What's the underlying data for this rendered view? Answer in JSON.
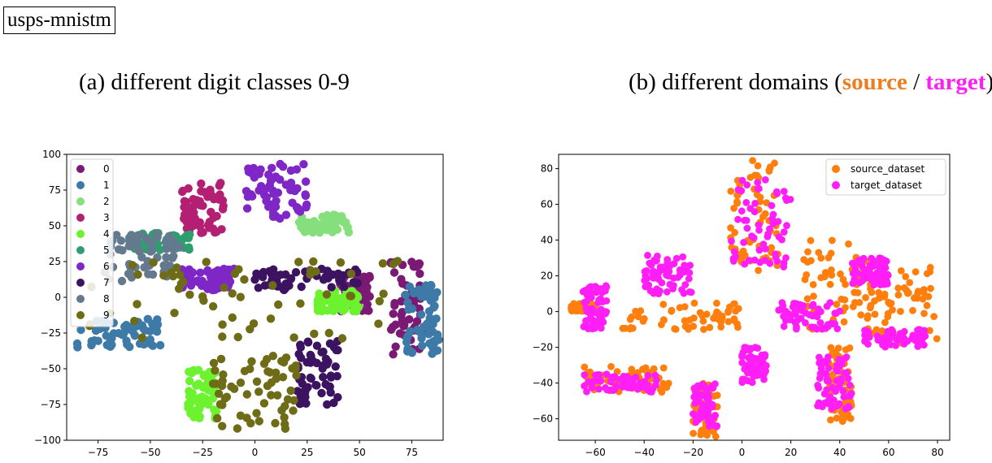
{
  "header": {
    "tag": "usps-mnistm",
    "caption_a": "(a) different digit classes 0-9",
    "caption_b_prefix": "(b) different domains (",
    "caption_b_source": "source",
    "caption_b_sep": " / ",
    "caption_b_target": "target",
    "caption_b_suffix": ")"
  },
  "chart_data": [
    {
      "type": "scatter",
      "title": "",
      "xlabel": "",
      "ylabel": "",
      "xlim": [
        -90,
        90
      ],
      "ylim": [
        -100,
        100
      ],
      "xticks": [
        -75,
        -50,
        -25,
        0,
        25,
        50,
        75
      ],
      "yticks": [
        100,
        75,
        50,
        25,
        0,
        -25,
        -50,
        -75,
        -100
      ],
      "xtick_labels": [
        "−75",
        "−50",
        "−25",
        "0",
        "25",
        "50",
        "75"
      ],
      "ytick_labels": [
        "100",
        "75",
        "50",
        "25",
        "0",
        "−25",
        "−50",
        "−75",
        "−100"
      ],
      "legend_position": "top-left",
      "series": [
        {
          "name": "0",
          "color": "#7a1a74",
          "clusters": [
            {
              "x": [
                65,
                80
              ],
              "y": [
                -40,
                30
              ]
            },
            {
              "x": [
                40,
                55
              ],
              "y": [
                -10,
                15
              ]
            }
          ]
        },
        {
          "name": "1",
          "color": "#3e7aa7",
          "clusters": [
            {
              "x": [
                -85,
                -45
              ],
              "y": [
                -35,
                -15
              ]
            },
            {
              "x": [
                72,
                88
              ],
              "y": [
                -40,
                10
              ]
            }
          ]
        },
        {
          "name": "2",
          "color": "#86df7d",
          "clusters": [
            {
              "x": [
                20,
                45
              ],
              "y": [
                45,
                58
              ]
            }
          ]
        },
        {
          "name": "3",
          "color": "#b31f73",
          "clusters": [
            {
              "x": [
                -35,
                -15
              ],
              "y": [
                45,
                80
              ]
            }
          ]
        },
        {
          "name": "4",
          "color": "#6cf22f",
          "clusters": [
            {
              "x": [
                -32,
                -18
              ],
              "y": [
                -85,
                -50
              ]
            },
            {
              "x": [
                30,
                50
              ],
              "y": [
                -10,
                5
              ]
            }
          ]
        },
        {
          "name": "5",
          "color": "#2f9e6e",
          "clusters": [
            {
              "x": [
                -60,
                -30
              ],
              "y": [
                33,
                45
              ]
            }
          ]
        },
        {
          "name": "6",
          "color": "#7f27c6",
          "clusters": [
            {
              "x": [
                -5,
                25
              ],
              "y": [
                55,
                94
              ]
            },
            {
              "x": [
                -35,
                -10
              ],
              "y": [
                5,
                20
              ]
            }
          ]
        },
        {
          "name": "7",
          "color": "#3b1360",
          "clusters": [
            {
              "x": [
                20,
                40
              ],
              "y": [
                -75,
                -30
              ]
            },
            {
              "x": [
                0,
                50
              ],
              "y": [
                5,
                20
              ]
            }
          ]
        },
        {
          "name": "8",
          "color": "#65798e",
          "clusters": [
            {
              "x": [
                -75,
                -35
              ],
              "y": [
                10,
                45
              ]
            }
          ]
        },
        {
          "name": "9",
          "color": "#6e6c16",
          "clusters": [
            {
              "x": [
                -20,
                20
              ],
              "y": [
                -92,
                -40
              ]
            },
            {
              "x": [
                -80,
                70
              ],
              "y": [
                -30,
                30
              ]
            }
          ]
        }
      ]
    },
    {
      "type": "scatter",
      "title": "",
      "xlabel": "",
      "ylabel": "",
      "xlim": [
        -75,
        85
      ],
      "ylim": [
        -72,
        88
      ],
      "xticks": [
        -60,
        -40,
        -20,
        0,
        20,
        40,
        60,
        80
      ],
      "yticks": [
        80,
        60,
        40,
        20,
        0,
        -20,
        -40,
        -60
      ],
      "xtick_labels": [
        "−60",
        "−40",
        "−20",
        "0",
        "20",
        "40",
        "60",
        "80"
      ],
      "ytick_labels": [
        "80",
        "60",
        "40",
        "20",
        "0",
        "−20",
        "−40",
        "−60"
      ],
      "legend_position": "top-right",
      "series": [
        {
          "name": "source_dataset",
          "color": "#ff7f0e",
          "clusters": [
            {
              "x": [
                -70,
                -60
              ],
              "y": [
                0,
                5
              ]
            },
            {
              "x": [
                -5,
                15
              ],
              "y": [
                20,
                85
              ]
            },
            {
              "x": [
                25,
                65
              ],
              "y": [
                -10,
                40
              ]
            },
            {
              "x": [
                40,
                80
              ],
              "y": [
                -20,
                25
              ]
            },
            {
              "x": [
                -20,
                -10
              ],
              "y": [
                -70,
                -40
              ]
            },
            {
              "x": [
                -65,
                -30
              ],
              "y": [
                -45,
                -30
              ]
            },
            {
              "x": [
                -50,
                0
              ],
              "y": [
                -10,
                5
              ]
            },
            {
              "x": [
                35,
                45
              ],
              "y": [
                -62,
                -20
              ]
            }
          ]
        },
        {
          "name": "target_dataset",
          "color": "#ff1ff6",
          "clusters": [
            {
              "x": [
                -65,
                -55
              ],
              "y": [
                -10,
                15
              ]
            },
            {
              "x": [
                -5,
                20
              ],
              "y": [
                25,
                75
              ]
            },
            {
              "x": [
                -40,
                -20
              ],
              "y": [
                10,
                32
              ]
            },
            {
              "x": [
                45,
                60
              ],
              "y": [
                15,
                30
              ]
            },
            {
              "x": [
                50,
                75
              ],
              "y": [
                -20,
                -10
              ]
            },
            {
              "x": [
                30,
                45
              ],
              "y": [
                -55,
                -25
              ]
            },
            {
              "x": [
                -20,
                -10
              ],
              "y": [
                -65,
                -40
              ]
            },
            {
              "x": [
                -65,
                -35
              ],
              "y": [
                -45,
                -35
              ]
            },
            {
              "x": [
                0,
                10
              ],
              "y": [
                -40,
                -20
              ]
            },
            {
              "x": [
                15,
                40
              ],
              "y": [
                -10,
                5
              ]
            }
          ]
        }
      ]
    }
  ]
}
